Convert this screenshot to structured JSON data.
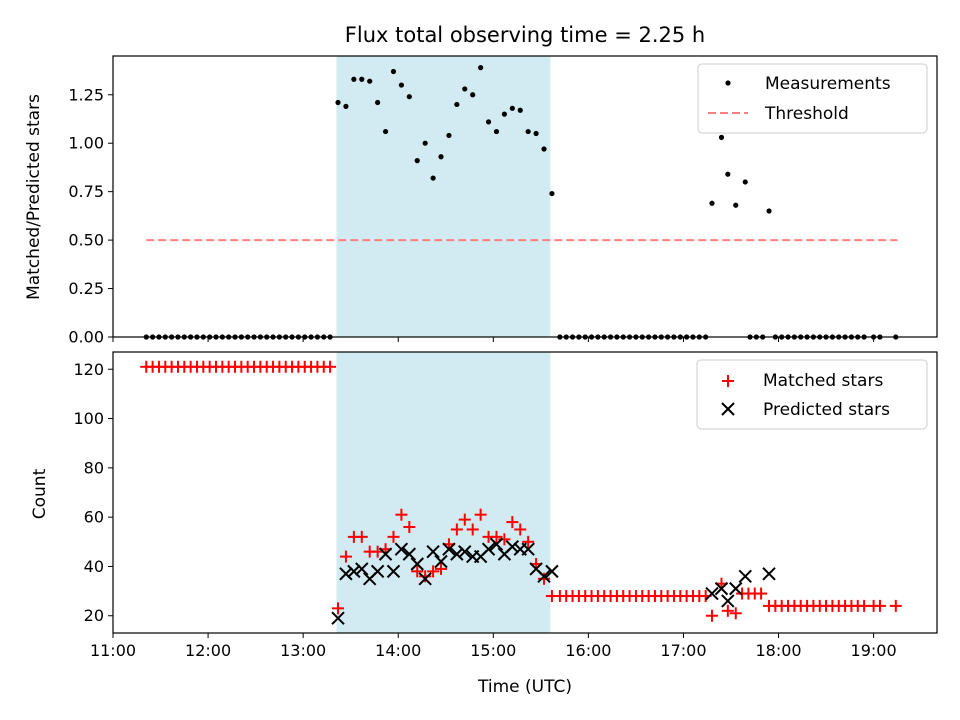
{
  "chart_data": [
    {
      "type": "scatter",
      "title": "Flux total observing time = 2.25 h",
      "ylabel": "Matched/Predicted stars",
      "xlim": [
        "11:00",
        "19:40"
      ],
      "ylim": [
        0,
        1.45
      ],
      "x_ticks": [
        "11:00",
        "12:00",
        "13:00",
        "14:00",
        "15:00",
        "16:00",
        "17:00",
        "18:00",
        "19:00"
      ],
      "y_ticks": [
        "0.00",
        "0.25",
        "0.50",
        "0.75",
        "1.00",
        "1.25"
      ],
      "shaded_region": {
        "start": "13:21",
        "end": "15:36",
        "color": "#add8e6"
      },
      "legend": {
        "placement": "upper right",
        "entries": [
          "Measurements",
          "Threshold"
        ]
      },
      "series": [
        {
          "name": "Measurements",
          "kind": "scatter",
          "color": "#000000",
          "points": [
            [
              "11:21",
              0
            ],
            [
              "11:25",
              0
            ],
            [
              "11:29",
              0
            ],
            [
              "11:33",
              0
            ],
            [
              "11:37",
              0
            ],
            [
              "11:41",
              0
            ],
            [
              "11:45",
              0
            ],
            [
              "11:49",
              0
            ],
            [
              "11:53",
              0
            ],
            [
              "11:57",
              0
            ],
            [
              "12:01",
              0
            ],
            [
              "12:05",
              0
            ],
            [
              "12:09",
              0
            ],
            [
              "12:13",
              0
            ],
            [
              "12:17",
              0
            ],
            [
              "12:21",
              0
            ],
            [
              "12:25",
              0
            ],
            [
              "12:29",
              0
            ],
            [
              "12:33",
              0
            ],
            [
              "12:37",
              0
            ],
            [
              "12:41",
              0
            ],
            [
              "12:45",
              0
            ],
            [
              "12:49",
              0
            ],
            [
              "12:53",
              0
            ],
            [
              "12:57",
              0
            ],
            [
              "13:01",
              0
            ],
            [
              "13:05",
              0
            ],
            [
              "13:09",
              0
            ],
            [
              "13:13",
              0
            ],
            [
              "13:17",
              0
            ],
            [
              "13:22",
              1.21
            ],
            [
              "13:27",
              1.19
            ],
            [
              "13:32",
              1.33
            ],
            [
              "13:37",
              1.33
            ],
            [
              "13:42",
              1.32
            ],
            [
              "13:47",
              1.21
            ],
            [
              "13:52",
              1.06
            ],
            [
              "13:57",
              1.37
            ],
            [
              "14:02",
              1.3
            ],
            [
              "14:07",
              1.24
            ],
            [
              "14:12",
              0.91
            ],
            [
              "14:17",
              1.0
            ],
            [
              "14:22",
              0.82
            ],
            [
              "14:27",
              0.93
            ],
            [
              "14:32",
              1.04
            ],
            [
              "14:37",
              1.2
            ],
            [
              "14:42",
              1.28
            ],
            [
              "14:47",
              1.25
            ],
            [
              "14:52",
              1.39
            ],
            [
              "14:57",
              1.11
            ],
            [
              "15:02",
              1.06
            ],
            [
              "15:07",
              1.15
            ],
            [
              "15:12",
              1.18
            ],
            [
              "15:17",
              1.17
            ],
            [
              "15:22",
              1.06
            ],
            [
              "15:27",
              1.05
            ],
            [
              "15:32",
              0.97
            ],
            [
              "15:37",
              0.74
            ],
            [
              "15:42",
              0
            ],
            [
              "15:46",
              0
            ],
            [
              "15:50",
              0
            ],
            [
              "15:54",
              0
            ],
            [
              "15:58",
              0
            ],
            [
              "16:02",
              0
            ],
            [
              "16:06",
              0
            ],
            [
              "16:10",
              0
            ],
            [
              "16:14",
              0
            ],
            [
              "16:18",
              0
            ],
            [
              "16:22",
              0
            ],
            [
              "16:26",
              0
            ],
            [
              "16:30",
              0
            ],
            [
              "16:34",
              0
            ],
            [
              "16:38",
              0
            ],
            [
              "16:42",
              0
            ],
            [
              "16:46",
              0
            ],
            [
              "16:50",
              0
            ],
            [
              "16:54",
              0
            ],
            [
              "16:58",
              0
            ],
            [
              "17:02",
              0
            ],
            [
              "17:06",
              0
            ],
            [
              "17:10",
              0
            ],
            [
              "17:14",
              0
            ],
            [
              "17:18",
              0.69
            ],
            [
              "17:24",
              1.03
            ],
            [
              "17:28",
              0.84
            ],
            [
              "17:33",
              0.68
            ],
            [
              "17:39",
              0.8
            ],
            [
              "17:42",
              0
            ],
            [
              "17:46",
              0
            ],
            [
              "17:50",
              0
            ],
            [
              "17:54",
              0.65
            ],
            [
              "17:58",
              0
            ],
            [
              "18:02",
              0
            ],
            [
              "18:06",
              0
            ],
            [
              "18:10",
              0
            ],
            [
              "18:14",
              0
            ],
            [
              "18:18",
              0
            ],
            [
              "18:22",
              0
            ],
            [
              "18:26",
              0
            ],
            [
              "18:30",
              0
            ],
            [
              "18:34",
              0
            ],
            [
              "18:38",
              0
            ],
            [
              "18:42",
              0
            ],
            [
              "18:46",
              0
            ],
            [
              "18:50",
              0
            ],
            [
              "18:54",
              0
            ],
            [
              "19:00",
              0
            ],
            [
              "19:04",
              0
            ],
            [
              "19:14",
              0
            ]
          ]
        },
        {
          "name": "Threshold",
          "kind": "dashed-line",
          "color": "#ff7f7f",
          "points": [
            [
              "11:21",
              0.5
            ],
            [
              "19:15",
              0.5
            ]
          ]
        }
      ]
    },
    {
      "type": "scatter",
      "xlabel": "Time (UTC)",
      "ylabel": "Count",
      "xlim": [
        "11:00",
        "19:40"
      ],
      "ylim": [
        13,
        127
      ],
      "x_ticks": [
        "11:00",
        "12:00",
        "13:00",
        "14:00",
        "15:00",
        "16:00",
        "17:00",
        "18:00",
        "19:00"
      ],
      "y_ticks": [
        "20",
        "40",
        "60",
        "80",
        "100",
        "120"
      ],
      "shaded_region": {
        "start": "13:21",
        "end": "15:36",
        "color": "#add8e6"
      },
      "legend": {
        "placement": "upper right",
        "entries": [
          "Matched stars",
          "Predicted stars"
        ]
      },
      "series": [
        {
          "name": "Matched stars",
          "kind": "plus",
          "color": "#ff0000",
          "points": [
            [
              "11:21",
              121
            ],
            [
              "11:25",
              121
            ],
            [
              "11:29",
              121
            ],
            [
              "11:33",
              121
            ],
            [
              "11:37",
              121
            ],
            [
              "11:41",
              121
            ],
            [
              "11:45",
              121
            ],
            [
              "11:49",
              121
            ],
            [
              "11:53",
              121
            ],
            [
              "11:57",
              121
            ],
            [
              "12:01",
              121
            ],
            [
              "12:05",
              121
            ],
            [
              "12:09",
              121
            ],
            [
              "12:13",
              121
            ],
            [
              "12:17",
              121
            ],
            [
              "12:21",
              121
            ],
            [
              "12:25",
              121
            ],
            [
              "12:29",
              121
            ],
            [
              "12:33",
              121
            ],
            [
              "12:37",
              121
            ],
            [
              "12:41",
              121
            ],
            [
              "12:45",
              121
            ],
            [
              "12:49",
              121
            ],
            [
              "12:53",
              121
            ],
            [
              "12:57",
              121
            ],
            [
              "13:01",
              121
            ],
            [
              "13:05",
              121
            ],
            [
              "13:09",
              121
            ],
            [
              "13:13",
              121
            ],
            [
              "13:17",
              121
            ],
            [
              "13:22",
              23
            ],
            [
              "13:27",
              44
            ],
            [
              "13:32",
              52
            ],
            [
              "13:37",
              52
            ],
            [
              "13:42",
              46
            ],
            [
              "13:47",
              46
            ],
            [
              "13:52",
              47
            ],
            [
              "13:57",
              52
            ],
            [
              "14:02",
              61
            ],
            [
              "14:07",
              56
            ],
            [
              "14:12",
              38
            ],
            [
              "14:17",
              36
            ],
            [
              "14:22",
              38
            ],
            [
              "14:27",
              39
            ],
            [
              "14:32",
              49
            ],
            [
              "14:37",
              55
            ],
            [
              "14:42",
              59
            ],
            [
              "14:47",
              55
            ],
            [
              "14:52",
              61
            ],
            [
              "14:57",
              52
            ],
            [
              "15:02",
              52
            ],
            [
              "15:07",
              51
            ],
            [
              "15:12",
              58
            ],
            [
              "15:17",
              55
            ],
            [
              "15:22",
              50
            ],
            [
              "15:27",
              41
            ],
            [
              "15:32",
              35
            ],
            [
              "15:37",
              28
            ],
            [
              "15:42",
              28
            ],
            [
              "15:46",
              28
            ],
            [
              "15:50",
              28
            ],
            [
              "15:54",
              28
            ],
            [
              "15:58",
              28
            ],
            [
              "16:02",
              28
            ],
            [
              "16:06",
              28
            ],
            [
              "16:10",
              28
            ],
            [
              "16:14",
              28
            ],
            [
              "16:18",
              28
            ],
            [
              "16:22",
              28
            ],
            [
              "16:26",
              28
            ],
            [
              "16:30",
              28
            ],
            [
              "16:34",
              28
            ],
            [
              "16:38",
              28
            ],
            [
              "16:42",
              28
            ],
            [
              "16:46",
              28
            ],
            [
              "16:50",
              28
            ],
            [
              "16:54",
              28
            ],
            [
              "16:58",
              28
            ],
            [
              "17:02",
              28
            ],
            [
              "17:06",
              28
            ],
            [
              "17:10",
              28
            ],
            [
              "17:14",
              28
            ],
            [
              "17:18",
              20
            ],
            [
              "17:24",
              33
            ],
            [
              "17:28",
              22
            ],
            [
              "17:33",
              21
            ],
            [
              "17:37",
              29
            ],
            [
              "17:41",
              29
            ],
            [
              "17:45",
              29
            ],
            [
              "17:49",
              29
            ],
            [
              "17:54",
              24
            ],
            [
              "17:58",
              24
            ],
            [
              "18:02",
              24
            ],
            [
              "18:06",
              24
            ],
            [
              "18:10",
              24
            ],
            [
              "18:14",
              24
            ],
            [
              "18:18",
              24
            ],
            [
              "18:22",
              24
            ],
            [
              "18:26",
              24
            ],
            [
              "18:30",
              24
            ],
            [
              "18:34",
              24
            ],
            [
              "18:38",
              24
            ],
            [
              "18:42",
              24
            ],
            [
              "18:46",
              24
            ],
            [
              "18:50",
              24
            ],
            [
              "18:54",
              24
            ],
            [
              "19:00",
              24
            ],
            [
              "19:04",
              24
            ],
            [
              "19:14",
              24
            ]
          ]
        },
        {
          "name": "Predicted stars",
          "kind": "x",
          "color": "#000000",
          "points": [
            [
              "13:22",
              19
            ],
            [
              "13:27",
              37
            ],
            [
              "13:32",
              38
            ],
            [
              "13:37",
              39
            ],
            [
              "13:42",
              35
            ],
            [
              "13:47",
              38
            ],
            [
              "13:52",
              45
            ],
            [
              "13:57",
              38
            ],
            [
              "14:02",
              47
            ],
            [
              "14:07",
              45
            ],
            [
              "14:12",
              41
            ],
            [
              "14:17",
              35
            ],
            [
              "14:22",
              46
            ],
            [
              "14:27",
              42
            ],
            [
              "14:32",
              47
            ],
            [
              "14:37",
              45
            ],
            [
              "14:42",
              46
            ],
            [
              "14:47",
              44
            ],
            [
              "14:52",
              44
            ],
            [
              "14:57",
              47
            ],
            [
              "15:02",
              49
            ],
            [
              "15:07",
              45
            ],
            [
              "15:12",
              48
            ],
            [
              "15:17",
              47
            ],
            [
              "15:22",
              47
            ],
            [
              "15:27",
              39
            ],
            [
              "15:32",
              36
            ],
            [
              "15:37",
              38
            ],
            [
              "17:18",
              29
            ],
            [
              "17:24",
              31
            ],
            [
              "17:28",
              26
            ],
            [
              "17:33",
              31
            ],
            [
              "17:39",
              36
            ],
            [
              "17:54",
              37
            ]
          ]
        }
      ]
    }
  ]
}
